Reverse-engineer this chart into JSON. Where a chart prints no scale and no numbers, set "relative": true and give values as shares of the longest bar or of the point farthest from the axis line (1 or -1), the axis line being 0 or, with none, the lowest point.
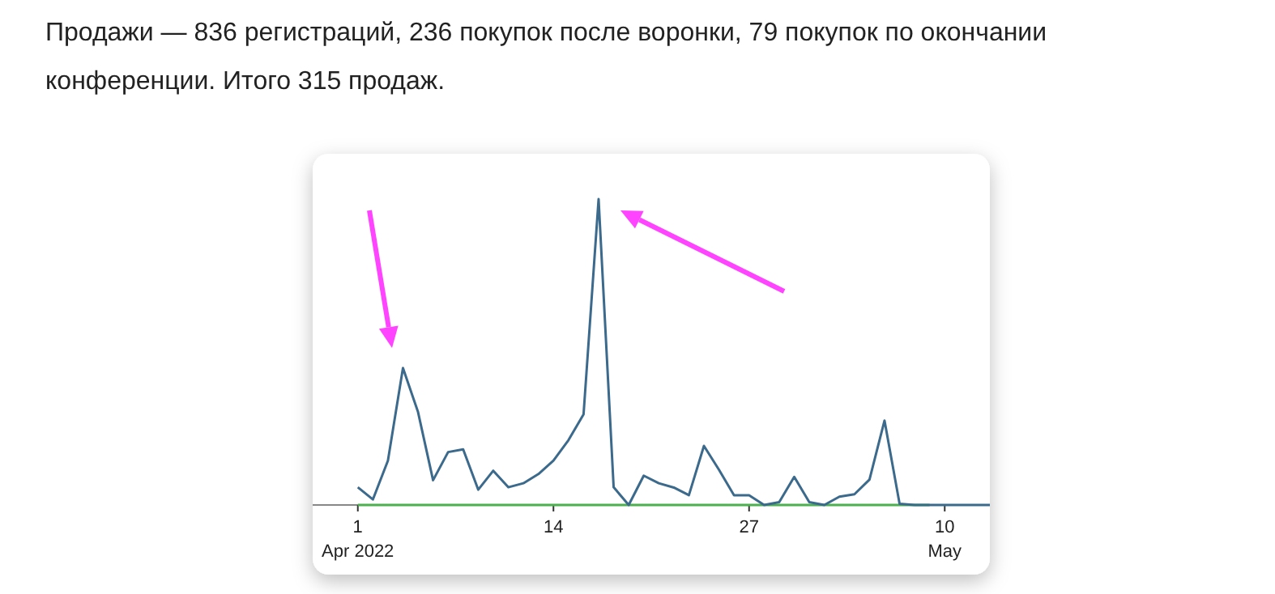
{
  "chart_data": {
    "type": "line",
    "title": "Продажи — 836 регистраций, 236 покупок после воронки, 79 покупок по окончании конференции. Итого 315 продаж.",
    "relative": true,
    "x": [
      "2022-04-01",
      "2022-04-02",
      "2022-04-03",
      "2022-04-04",
      "2022-04-05",
      "2022-04-06",
      "2022-04-07",
      "2022-04-08",
      "2022-04-09",
      "2022-04-10",
      "2022-04-11",
      "2022-04-12",
      "2022-04-13",
      "2022-04-14",
      "2022-04-15",
      "2022-04-16",
      "2022-04-17",
      "2022-04-18",
      "2022-04-19",
      "2022-04-20",
      "2022-04-21",
      "2022-04-22",
      "2022-04-23",
      "2022-04-24",
      "2022-04-25",
      "2022-04-26",
      "2022-04-27",
      "2022-04-28",
      "2022-04-29",
      "2022-04-30",
      "2022-05-01",
      "2022-05-02",
      "2022-05-03",
      "2022-05-04",
      "2022-05-05",
      "2022-05-06",
      "2022-05-07",
      "2022-05-08",
      "2022-05-09",
      "2022-05-10",
      "2022-05-11",
      "2022-05-12",
      "2022-05-13"
    ],
    "xlim": [
      "2022-03-29",
      "2022-05-13"
    ],
    "xticks": [
      {
        "value": "2022-04-01",
        "label": "1\nApr 2022"
      },
      {
        "value": "2022-04-14",
        "label": "14"
      },
      {
        "value": "2022-04-27",
        "label": "27"
      },
      {
        "value": "2022-05-10",
        "label": "10\nMay"
      }
    ],
    "series": [
      {
        "color": "#4caf50",
        "values": [
          0,
          0,
          0,
          0,
          0,
          0,
          0,
          0,
          0,
          0,
          0,
          0,
          0,
          0,
          0,
          0,
          0,
          0,
          0,
          0,
          0,
          0,
          0,
          0,
          0,
          0,
          0,
          0,
          0,
          0,
          0,
          0,
          0,
          0,
          0,
          0,
          0,
          0,
          0,
          null,
          null,
          null,
          null
        ]
      },
      {
        "color": "#3b6a8c",
        "values": [
          0.058,
          0.018,
          0.145,
          0.448,
          0.304,
          0.081,
          0.173,
          0.182,
          0.05,
          0.112,
          0.058,
          0.071,
          0.101,
          0.145,
          0.212,
          0.296,
          1,
          0.058,
          0,
          0.096,
          0.071,
          0.057,
          0.032,
          0.193,
          0.115,
          0.032,
          0.032,
          0,
          0.009,
          0.092,
          0.009,
          0,
          0.027,
          0.035,
          0.083,
          0.276,
          0.004,
          0,
          0,
          0,
          0,
          0,
          0
        ]
      }
    ],
    "marker": "none",
    "line_style": "solid"
  }
}
